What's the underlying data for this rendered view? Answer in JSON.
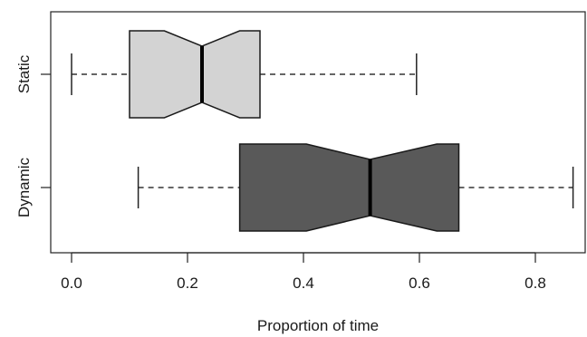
{
  "chart_data": {
    "type": "boxplot",
    "orientation": "horizontal",
    "notched": true,
    "xlabel": "Proportion of time",
    "ylabel": "",
    "xlim": [
      -0.04,
      0.88
    ],
    "x_ticks": [
      0.0,
      0.2,
      0.4,
      0.6,
      0.8
    ],
    "x_tick_labels": [
      "0.0",
      "0.2",
      "0.4",
      "0.6",
      "0.8"
    ],
    "grid": false,
    "legend": "none",
    "categories": [
      "Static",
      "Dynamic"
    ],
    "series": [
      {
        "category": "Static",
        "whisker_low": 0.0,
        "q1": 0.1,
        "notch_low": 0.16,
        "median": 0.225,
        "notch_high": 0.29,
        "q3": 0.325,
        "whisker_high": 0.595,
        "color": "#d3d3d3"
      },
      {
        "category": "Dynamic",
        "whisker_low": 0.115,
        "q1": 0.29,
        "notch_low": 0.405,
        "median": 0.515,
        "notch_high": 0.63,
        "q3": 0.668,
        "whisker_high": 0.865,
        "color": "#595959"
      }
    ]
  }
}
